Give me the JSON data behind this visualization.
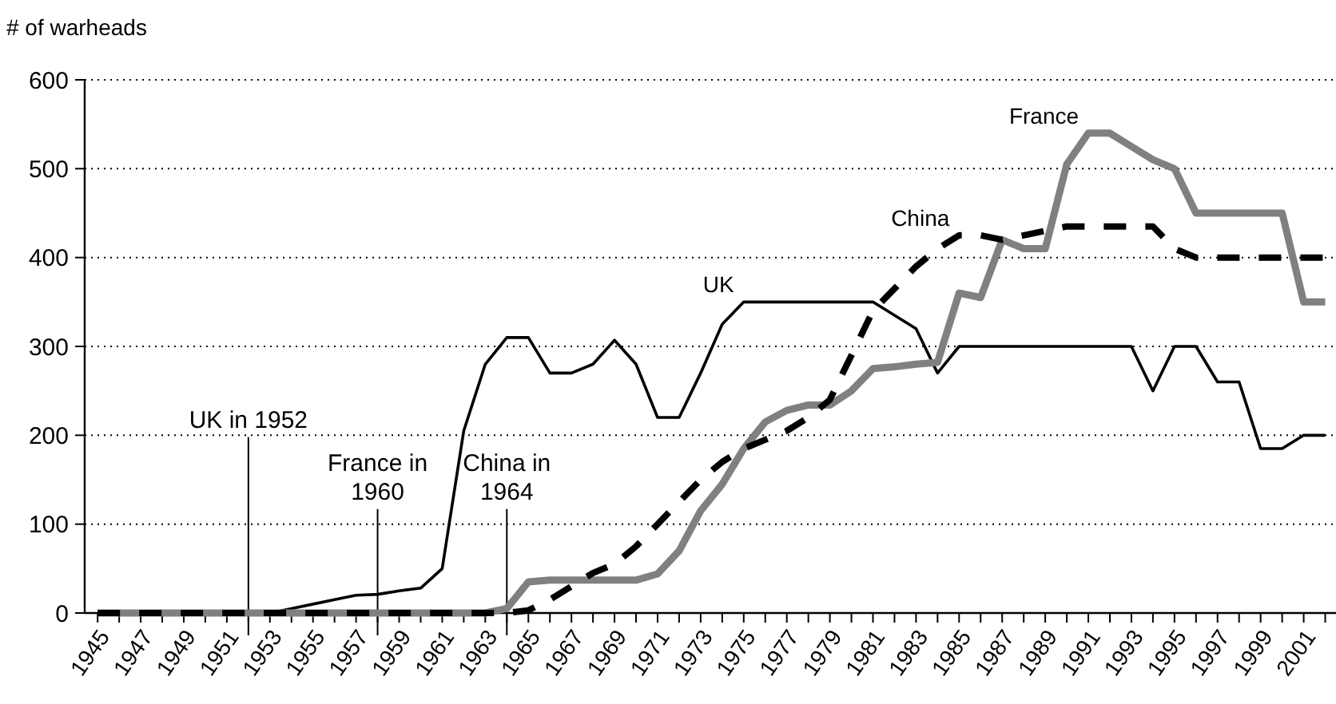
{
  "chart_data": {
    "type": "line",
    "ylabel": "# of warheads",
    "x": [
      1945,
      1946,
      1947,
      1948,
      1949,
      1950,
      1951,
      1952,
      1953,
      1954,
      1955,
      1956,
      1957,
      1958,
      1959,
      1960,
      1961,
      1962,
      1963,
      1964,
      1965,
      1966,
      1967,
      1968,
      1969,
      1970,
      1971,
      1972,
      1973,
      1974,
      1975,
      1976,
      1977,
      1978,
      1979,
      1980,
      1981,
      1982,
      1983,
      1984,
      1985,
      1986,
      1987,
      1988,
      1989,
      1990,
      1991,
      1992,
      1993,
      1994,
      1995,
      1996,
      1997,
      1998,
      1999,
      2000,
      2001,
      2002
    ],
    "series": [
      {
        "name": "UK",
        "color": "#000000",
        "line_style": "solid",
        "values": [
          0,
          0,
          0,
          0,
          0,
          0,
          0,
          0,
          0,
          5,
          10,
          15,
          20,
          21,
          25,
          28,
          50,
          205,
          280,
          310,
          310,
          270,
          270,
          280,
          307,
          280,
          220,
          220,
          270,
          325,
          350,
          350,
          350,
          350,
          350,
          350,
          350,
          335,
          320,
          270,
          300,
          300,
          300,
          300,
          300,
          300,
          300,
          300,
          300,
          250,
          300,
          300,
          260,
          260,
          185,
          185,
          200,
          200
        ]
      },
      {
        "name": "France",
        "color": "#808080",
        "line_style": "solid",
        "values": [
          0,
          0,
          0,
          0,
          0,
          0,
          0,
          0,
          0,
          0,
          0,
          0,
          0,
          0,
          0,
          0,
          0,
          0,
          0,
          5,
          35,
          37,
          37,
          37,
          37,
          37,
          44,
          70,
          115,
          145,
          185,
          215,
          228,
          234,
          234,
          250,
          275,
          277,
          280,
          282,
          360,
          355,
          420,
          410,
          410,
          505,
          540,
          540,
          525,
          510,
          500,
          450,
          450,
          450,
          450,
          450,
          350,
          350
        ]
      },
      {
        "name": "China",
        "color": "#000000",
        "line_style": "dashed",
        "values": [
          0,
          0,
          0,
          0,
          0,
          0,
          0,
          0,
          0,
          0,
          0,
          0,
          0,
          0,
          0,
          0,
          0,
          0,
          0,
          0,
          3,
          15,
          30,
          45,
          55,
          75,
          100,
          125,
          150,
          170,
          185,
          195,
          205,
          220,
          240,
          290,
          340,
          365,
          390,
          410,
          425,
          425,
          420,
          425,
          430,
          435,
          435,
          435,
          435,
          435,
          410,
          400,
          400,
          400,
          400,
          400,
          400,
          400
        ]
      }
    ],
    "xlim": [
      1944.4,
      2002.5
    ],
    "xticks": [
      1945,
      {
        "value": 1946,
        "label": null
      },
      1947,
      {
        "value": 1948,
        "label": null
      },
      1949,
      {
        "value": 1950,
        "label": null
      },
      1951,
      {
        "value": 1952,
        "label": null
      },
      1953,
      {
        "value": 1954,
        "label": null
      },
      1955,
      {
        "value": 1956,
        "label": null
      },
      1957,
      {
        "value": 1958,
        "label": null
      },
      1959,
      {
        "value": 1960,
        "label": null
      },
      1961,
      {
        "value": 1962,
        "label": null
      },
      1963,
      {
        "value": 1964,
        "label": null
      },
      1965,
      {
        "value": 1966,
        "label": null
      },
      1967,
      {
        "value": 1968,
        "label": null
      },
      1969,
      {
        "value": 1970,
        "label": null
      },
      1971,
      {
        "value": 1972,
        "label": null
      },
      1973,
      {
        "value": 1974,
        "label": null
      },
      1975,
      {
        "value": 1976,
        "label": null
      },
      1977,
      {
        "value": 1978,
        "label": null
      },
      1979,
      {
        "value": 1980,
        "label": null
      },
      1981,
      {
        "value": 1982,
        "label": null
      },
      1983,
      {
        "value": 1984,
        "label": null
      },
      1985,
      {
        "value": 1986,
        "label": null
      },
      1987,
      {
        "value": 1988,
        "label": null
      },
      1989,
      {
        "value": 1990,
        "label": null
      },
      1991,
      {
        "value": 1992,
        "label": null
      },
      1993,
      {
        "value": 1994,
        "label": null
      },
      1995,
      {
        "value": 1996,
        "label": null
      },
      1997,
      {
        "value": 1998,
        "label": null
      },
      1999,
      {
        "value": 2000,
        "label": null
      },
      2001,
      {
        "value": 2002,
        "label": null
      }
    ],
    "ylim": [
      0,
      600
    ],
    "yticks": [
      0,
      100,
      200,
      300,
      400,
      500,
      600
    ],
    "grid": "y",
    "marker": "none",
    "ref_lines": [
      {
        "axis": "x",
        "value": 1952,
        "label": "UK in 1952"
      },
      {
        "axis": "x",
        "value": 1958,
        "label": "France in\n1960"
      },
      {
        "axis": "x",
        "value": 1964,
        "label": "China in\n1964"
      }
    ]
  }
}
